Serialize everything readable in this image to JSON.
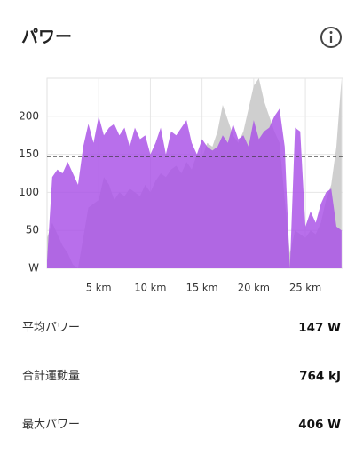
{
  "header": {
    "title": "パワー"
  },
  "chart_data": {
    "type": "area",
    "x": [
      0,
      0.5,
      1,
      1.5,
      2,
      2.5,
      3,
      3.5,
      4,
      4.5,
      5,
      5.5,
      6,
      6.5,
      7,
      7.5,
      8,
      8.5,
      9,
      9.5,
      10,
      10.5,
      11,
      11.5,
      12,
      12.5,
      13,
      13.5,
      14,
      14.5,
      15,
      15.5,
      16,
      16.5,
      17,
      17.5,
      18,
      18.5,
      19,
      19.5,
      20,
      20.5,
      21,
      21.5,
      22,
      22.5,
      23,
      23.5,
      24,
      24.5,
      25,
      25.5,
      26,
      26.5,
      27,
      27.5,
      28,
      28.5
    ],
    "series": [
      {
        "color": "#cfcfcf",
        "values": [
          40,
          60,
          45,
          30,
          20,
          5,
          0,
          40,
          80,
          85,
          90,
          120,
          110,
          90,
          100,
          95,
          105,
          100,
          95,
          110,
          100,
          115,
          125,
          120,
          130,
          135,
          125,
          140,
          130,
          150,
          145,
          165,
          160,
          180,
          215,
          195,
          175,
          165,
          180,
          210,
          240,
          250,
          220,
          200,
          180,
          165,
          90,
          20,
          50,
          45,
          40,
          50,
          45,
          60,
          90,
          110,
          160,
          250
        ]
      },
      {
        "color": "#a84fe6",
        "values": [
          10,
          120,
          130,
          125,
          140,
          125,
          110,
          160,
          190,
          165,
          200,
          175,
          185,
          190,
          175,
          185,
          160,
          185,
          170,
          175,
          150,
          165,
          185,
          150,
          180,
          175,
          185,
          195,
          165,
          150,
          170,
          160,
          155,
          160,
          175,
          165,
          190,
          170,
          175,
          160,
          195,
          170,
          180,
          185,
          200,
          210,
          160,
          0,
          185,
          180,
          55,
          75,
          60,
          85,
          100,
          105,
          55,
          50
        ]
      }
    ],
    "reference_line": 147,
    "xlim": [
      0,
      28.6
    ],
    "xticks": [
      {
        "value": 5,
        "label": "5 km"
      },
      {
        "value": 10,
        "label": "10 km"
      },
      {
        "value": 15,
        "label": "15 km"
      },
      {
        "value": 20,
        "label": "20 km"
      },
      {
        "value": 25,
        "label": "25 km"
      }
    ],
    "ylim": [
      0,
      250
    ],
    "yticks": [
      {
        "value": 0,
        "label": "W"
      },
      50,
      100,
      150,
      200
    ],
    "grid": true
  },
  "stats": [
    {
      "label": "平均パワー",
      "value": "147 W"
    },
    {
      "label": "合計運動量",
      "value": "764 kJ"
    },
    {
      "label": "最大パワー",
      "value": "406 W"
    }
  ]
}
